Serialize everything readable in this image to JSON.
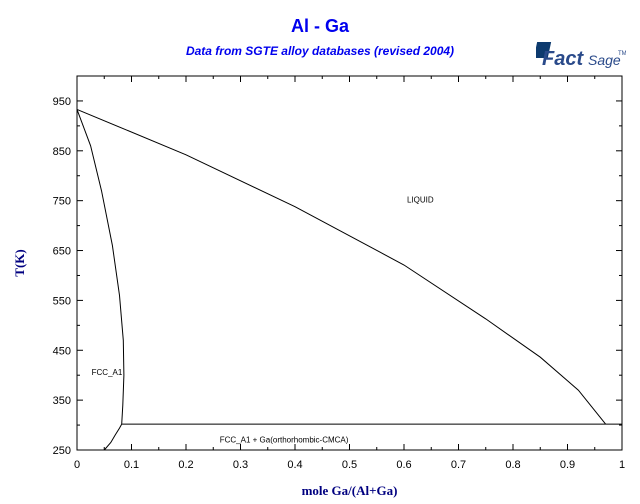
{
  "header": {
    "title": "Al - Ga",
    "subtitle": "Data from SGTE alloy databases (revised 2004)"
  },
  "logo": {
    "text_main": "Fact",
    "text_sage": "Sage",
    "tm": "TM"
  },
  "colors": {
    "title": "#0000ee",
    "axis_label": "#000080",
    "line": "#000000"
  },
  "chart_data": {
    "type": "line",
    "title": "Al - Ga",
    "subtitle": "Data from SGTE alloy databases (revised 2004)",
    "xlabel": "mole Ga/(Al+Ga)",
    "ylabel": "T(K)",
    "xlim": [
      0,
      1
    ],
    "ylim": [
      250,
      1000
    ],
    "x_ticks": [
      0,
      0.1,
      0.2,
      0.3,
      0.4,
      0.5,
      0.6,
      0.7,
      0.8,
      0.9,
      1
    ],
    "x_tick_labels": [
      "0",
      "0.1",
      "0.2",
      "0.3",
      "0.4",
      "0.5",
      "0.6",
      "0.7",
      "0.8",
      "0.9",
      "1"
    ],
    "y_ticks": [
      250,
      350,
      450,
      550,
      650,
      750,
      850,
      950
    ],
    "y_tick_labels": [
      "250",
      "350",
      "450",
      "550",
      "650",
      "750",
      "850",
      "950"
    ],
    "series": [
      {
        "x": [
          0,
          0.2,
          0.4,
          0.6,
          0.75,
          0.85,
          0.92,
          0.97
        ],
        "y": [
          933,
          842,
          738,
          621,
          513,
          436,
          370,
          302
        ]
      },
      {
        "x": [
          0,
          0.025,
          0.045,
          0.065,
          0.078,
          0.085,
          0.086,
          0.084,
          0.082
        ],
        "y": [
          933,
          860,
          770,
          660,
          560,
          470,
          400,
          340,
          302
        ]
      },
      {
        "x": [
          0.05,
          0.062,
          0.07,
          0.078,
          0.082
        ],
        "y": [
          250,
          265,
          280,
          294,
          302
        ]
      },
      {
        "x": [
          0.082,
          1
        ],
        "y": [
          302,
          302
        ]
      }
    ],
    "annotations": [
      {
        "text": "LIQUID",
        "x": 0.63,
        "y": 746
      },
      {
        "text": "FCC_A1",
        "x": 0.055,
        "y": 400
      },
      {
        "text": "FCC_A1 + Ga(orthorhombic-CMCA)",
        "x": 0.38,
        "y": 265
      }
    ],
    "grid": false
  }
}
